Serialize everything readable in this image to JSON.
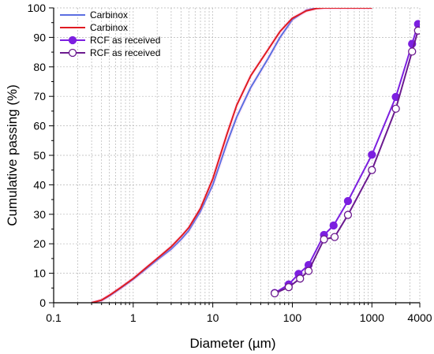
{
  "chart_data": {
    "type": "line",
    "xlabel": "Diameter (µm)",
    "ylabel": "Cumulative passing (%)",
    "x_scale": "log",
    "xlim": [
      0.1,
      4000
    ],
    "ylim": [
      0,
      100
    ],
    "x_ticks": [
      {
        "value": 0.1,
        "label": "0.1"
      },
      {
        "value": 1,
        "label": "1"
      },
      {
        "value": 10,
        "label": "10"
      },
      {
        "value": 100,
        "label": "100"
      },
      {
        "value": 1000,
        "label": "1000"
      },
      {
        "value": 4000,
        "label": "4000"
      }
    ],
    "y_ticks": [
      0,
      10,
      20,
      30,
      40,
      50,
      60,
      70,
      80,
      90,
      100
    ],
    "grid": true,
    "legend_position": "top-left",
    "series": [
      {
        "name": "Carbinox",
        "color": "#5b6ee1",
        "marker": "none",
        "x": [
          0.3,
          0.4,
          0.5,
          0.7,
          1,
          1.5,
          2,
          3,
          4,
          5,
          7,
          10,
          15,
          20,
          30,
          50,
          70,
          100,
          150,
          200,
          250,
          300,
          500,
          1000
        ],
        "y": [
          0,
          0.8,
          2.3,
          5,
          8,
          11.8,
          14.5,
          18.2,
          21.5,
          24.5,
          31,
          40,
          54,
          63,
          73,
          83,
          90,
          96,
          99.2,
          100,
          100,
          100,
          100,
          100
        ]
      },
      {
        "name": "Carbinox",
        "color": "#e01b22",
        "marker": "none",
        "x": [
          0.3,
          0.4,
          0.5,
          0.7,
          1,
          1.5,
          2,
          3,
          4,
          5,
          7,
          10,
          15,
          20,
          30,
          50,
          70,
          100,
          150,
          200,
          250,
          300,
          500,
          1000
        ],
        "y": [
          0,
          0.9,
          2.5,
          5.2,
          8.2,
          12.2,
          15,
          19,
          22.5,
          25.5,
          32,
          42,
          57,
          67,
          77,
          86,
          92,
          96.5,
          99,
          99.8,
          100,
          100,
          100,
          100
        ]
      },
      {
        "name": "RCF as received",
        "color": "#7c1fe0",
        "marker": "filled-circle",
        "x": [
          60,
          90,
          120,
          160,
          250,
          330,
          500,
          1000,
          2000,
          3200,
          3800
        ],
        "y": [
          3.3,
          6.2,
          9.8,
          12.8,
          23,
          26.2,
          34.5,
          50.2,
          69.8,
          87.8,
          94.5
        ]
      },
      {
        "name": "RCF as received",
        "color": "#6b1a8f",
        "marker": "open-circle",
        "x": [
          60,
          90,
          125,
          160,
          250,
          340,
          500,
          1000,
          2000,
          3200,
          3800
        ],
        "y": [
          3.2,
          5.3,
          8.2,
          10.8,
          21.5,
          22.3,
          29.8,
          45,
          65.8,
          85.2,
          92.3
        ]
      }
    ]
  }
}
